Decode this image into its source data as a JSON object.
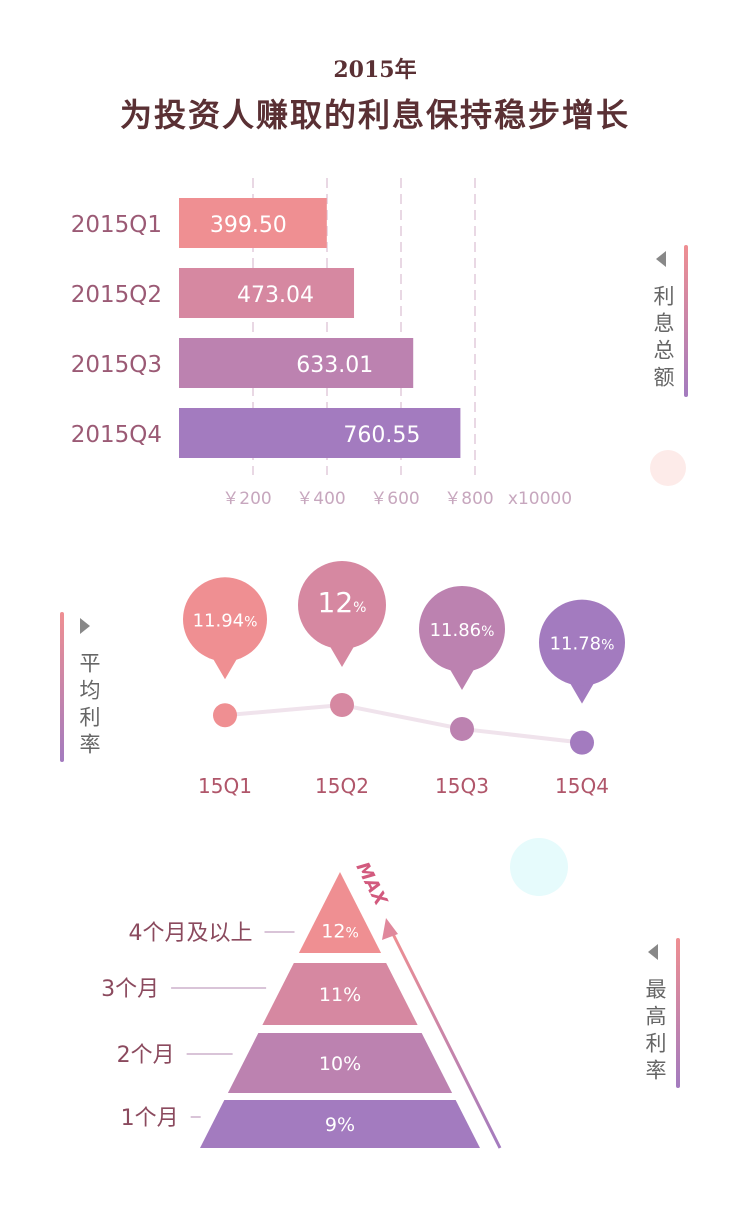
{
  "header": {
    "year": "2015年",
    "title": "为投资人赚取的利息保持稳步增长"
  },
  "colors": {
    "pink": "#ef8f92",
    "purple": "#a37bbf",
    "title": "#5a3034",
    "dashed": "#e9d8e4"
  },
  "interest_section": {
    "side_label": "利息总额",
    "unit_label": "x10000",
    "icon": "triangle-left-icon"
  },
  "rate_section": {
    "side_label": "平均利率",
    "icon": "triangle-right-icon"
  },
  "max_section": {
    "side_label": "最高利率",
    "max_label": "MAX",
    "icon": "triangle-left-icon"
  },
  "chart_data": [
    {
      "type": "bar",
      "orientation": "horizontal",
      "categories": [
        "2015Q1",
        "2015Q2",
        "2015Q3",
        "2015Q4"
      ],
      "values": [
        399.5,
        473.04,
        633.01,
        760.55
      ],
      "value_labels": [
        "399.50",
        "473.04",
        "633.01",
        "760.55"
      ],
      "x_ticks": [
        200,
        400,
        600,
        800
      ],
      "x_tick_labels": [
        "￥200",
        "￥400",
        "￥600",
        "￥800"
      ],
      "xlim": [
        0,
        1000
      ],
      "grid": "vertical dashed",
      "xlabel": "x10000"
    },
    {
      "type": "line",
      "categories": [
        "15Q1",
        "15Q2",
        "15Q3",
        "15Q4"
      ],
      "values": [
        11.94,
        12,
        11.86,
        11.78
      ],
      "value_labels": [
        {
          "num": "11.94",
          "unit": "%"
        },
        {
          "num": "12",
          "unit": "%"
        },
        {
          "num": "11.86",
          "unit": "%"
        },
        {
          "num": "11.78",
          "unit": "%"
        }
      ],
      "ylim": [
        11.7,
        12.05
      ]
    },
    {
      "type": "bar",
      "subtype": "pyramid",
      "categories": [
        "4个月及以上",
        "3个月",
        "2个月",
        "1个月"
      ],
      "values": [
        12,
        11,
        10,
        9
      ],
      "value_labels": [
        {
          "num": "12",
          "unit": "%"
        },
        {
          "num": "11",
          "unit": "%"
        },
        {
          "num": "10",
          "unit": "%"
        },
        {
          "num": "9",
          "unit": "%"
        }
      ]
    }
  ]
}
